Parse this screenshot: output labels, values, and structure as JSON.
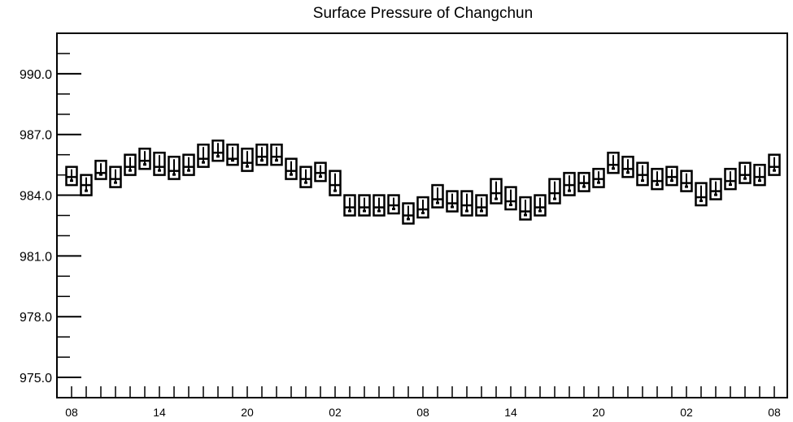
{
  "chart_data": {
    "type": "boxplot",
    "title": "Surface Pressure of Changchun",
    "ylim": [
      974.0,
      992.0
    ],
    "y_ticks": [
      975.0,
      978.0,
      981.0,
      984.0,
      987.0,
      990.0
    ],
    "y_tick_labels": [
      "975.0",
      "978.0",
      "981.0",
      "984.0",
      "987.0",
      "990.0"
    ],
    "x_tick_labels": [
      "08",
      "14",
      "20",
      "02",
      "08",
      "14",
      "20",
      "02",
      "08"
    ],
    "x_label_every": 6,
    "series": [
      {
        "medians": [
          984.9,
          984.5,
          985.1,
          984.8,
          985.4,
          985.7,
          985.4,
          985.2,
          985.4,
          985.8,
          986.1,
          985.8,
          985.6,
          985.9,
          985.9,
          985.2,
          984.8,
          985.1,
          984.5,
          983.4,
          983.4,
          983.4,
          983.5,
          983.0,
          983.3,
          983.8,
          983.6,
          983.5,
          983.4,
          984.1,
          983.7,
          983.2,
          983.4,
          984.1,
          984.5,
          984.6,
          984.8,
          985.5,
          985.3,
          985.0,
          984.7,
          984.9,
          984.6,
          983.9,
          984.2,
          984.7,
          985.0,
          984.9,
          985.4
        ],
        "box_low": [
          984.5,
          984.0,
          984.8,
          984.4,
          985.0,
          985.3,
          985.0,
          984.8,
          985.0,
          985.4,
          985.7,
          985.5,
          985.2,
          985.5,
          985.5,
          984.8,
          984.4,
          984.7,
          984.0,
          983.0,
          983.0,
          983.0,
          983.1,
          982.6,
          982.9,
          983.4,
          983.2,
          983.0,
          983.0,
          983.6,
          983.3,
          982.8,
          983.0,
          983.6,
          984.0,
          984.2,
          984.4,
          985.1,
          984.9,
          984.5,
          984.3,
          984.5,
          984.2,
          983.5,
          983.8,
          984.3,
          984.6,
          984.5,
          985.0
        ],
        "box_high": [
          985.4,
          985.0,
          985.7,
          985.4,
          986.0,
          986.3,
          986.1,
          985.9,
          986.0,
          986.5,
          986.7,
          986.5,
          986.3,
          986.5,
          986.5,
          985.8,
          985.4,
          985.6,
          985.2,
          984.0,
          984.0,
          984.0,
          984.0,
          983.6,
          983.9,
          984.5,
          984.2,
          984.2,
          984.0,
          984.8,
          984.4,
          983.9,
          984.0,
          984.8,
          985.1,
          985.1,
          985.3,
          986.1,
          985.9,
          985.6,
          985.3,
          985.4,
          985.2,
          984.6,
          984.8,
          985.3,
          985.6,
          985.5,
          986.0
        ]
      }
    ]
  }
}
